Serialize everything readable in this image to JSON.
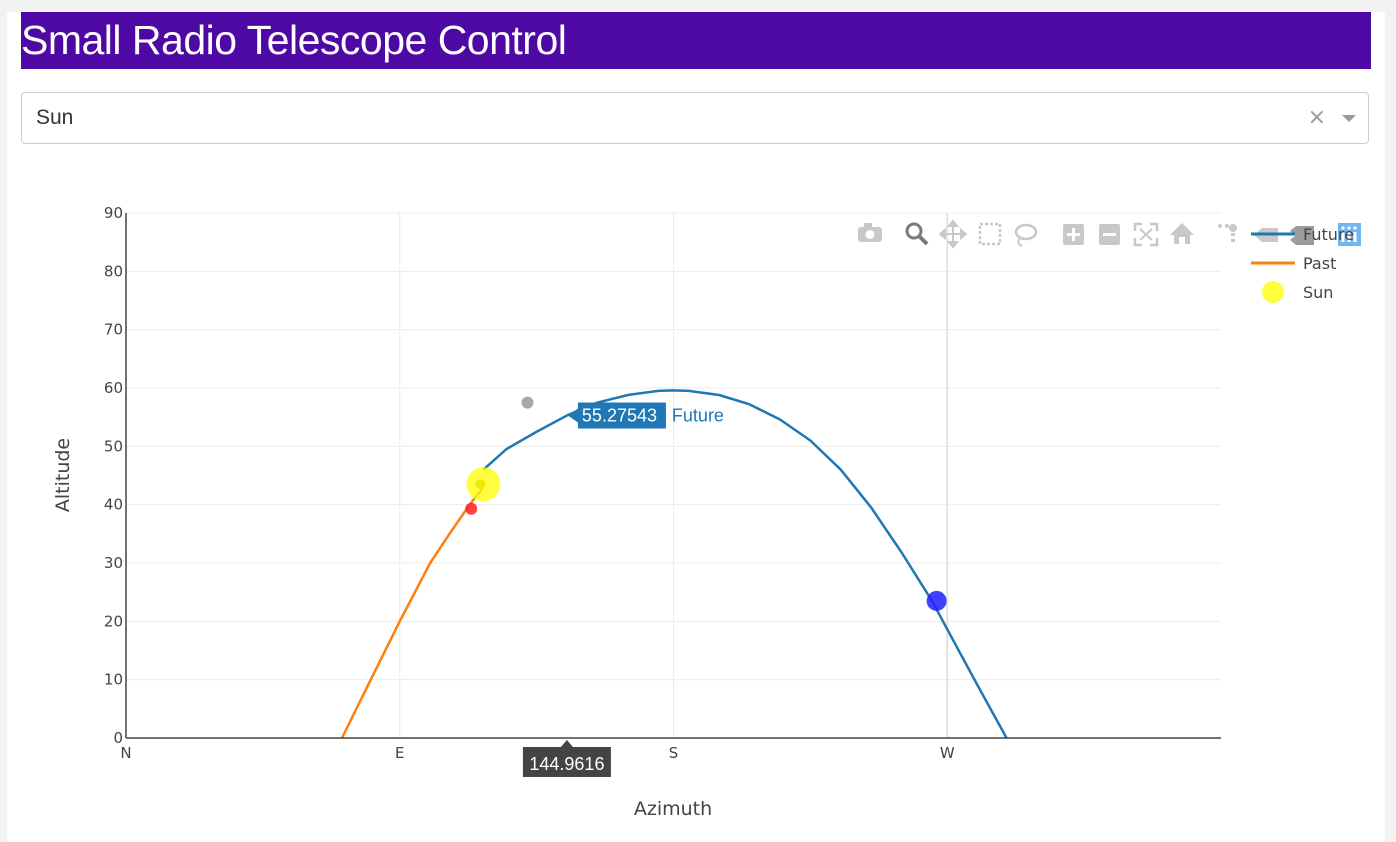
{
  "header": {
    "title": "Small Radio Telescope Control"
  },
  "target_select": {
    "value": "Sun",
    "clear_symbol": "×"
  },
  "chart_data": {
    "type": "line",
    "xlabel": "Azimuth",
    "ylabel": "Altitude",
    "xlim": [
      0,
      360
    ],
    "ylim": [
      0,
      90
    ],
    "x_ticks": [
      {
        "value": 0,
        "label": "N"
      },
      {
        "value": 90,
        "label": "E"
      },
      {
        "value": 180,
        "label": "S"
      },
      {
        "value": 270,
        "label": "W"
      }
    ],
    "y_ticks": [
      {
        "value": 0,
        "label": "0"
      },
      {
        "value": 10,
        "label": "10"
      },
      {
        "value": 20,
        "label": "20"
      },
      {
        "value": 30,
        "label": "30"
      },
      {
        "value": 40,
        "label": "40"
      },
      {
        "value": 50,
        "label": "50"
      },
      {
        "value": 60,
        "label": "60"
      },
      {
        "value": 70,
        "label": "70"
      },
      {
        "value": 80,
        "label": "80"
      },
      {
        "value": 90,
        "label": "90"
      }
    ],
    "grid": true,
    "legend_position": "top-right",
    "series": [
      {
        "name": "Future",
        "color": "#1f77b4",
        "type": "line",
        "x": [
          117.5,
          125,
          135,
          145,
          155,
          165,
          175,
          180,
          185,
          195,
          205,
          215,
          225,
          235,
          245,
          255,
          265,
          272,
          280,
          289.5
        ],
        "y": [
          46,
          49.5,
          52.5,
          55.3,
          57.5,
          58.8,
          59.5,
          59.6,
          59.5,
          58.8,
          57.2,
          54.6,
          51,
          46,
          39.5,
          31.8,
          23.5,
          16.7,
          9,
          0
        ]
      },
      {
        "name": "Past",
        "color": "#ff7f0e",
        "type": "line",
        "x": [
          71,
          80,
          90,
          100,
          107,
          113,
          117.5
        ],
        "y": [
          0,
          9.5,
          20,
          30,
          35.5,
          40,
          43
        ]
      },
      {
        "name": "Sun",
        "color": "#ffff00",
        "type": "scatter",
        "x": [
          117.5
        ],
        "y": [
          43.5
        ]
      }
    ],
    "markers": [
      {
        "x": 132,
        "y": 57.5,
        "color": "#999999"
      },
      {
        "x": 113.5,
        "y": 39.3,
        "color": "#ff2222"
      },
      {
        "x": 116.5,
        "y": 43.5,
        "color": "#e8e800"
      },
      {
        "x": 266.5,
        "y": 23.5,
        "color": "#1f1fff"
      }
    ],
    "hover": {
      "x_value": "144.9616",
      "y_value": "55.27543",
      "series": "Future",
      "x": 144.9616,
      "y": 55.27543
    }
  }
}
